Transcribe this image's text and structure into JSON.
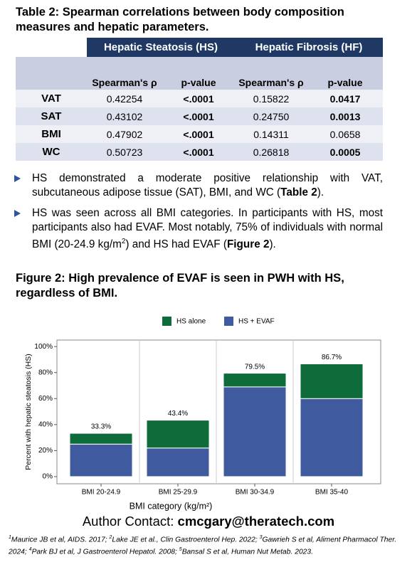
{
  "table_title": "Table 2: Spearman correlations between body composition measures and hepatic parameters.",
  "table": {
    "groups": [
      "Hepatic Steatosis (HS)",
      "Hepatic Fibrosis (HF)"
    ],
    "subheader": [
      "Spearman's ρ",
      "p-value",
      "Spearman's ρ",
      "p-value"
    ],
    "rows": [
      [
        "VAT",
        "0.42254",
        "<.0001",
        "0.15822",
        "0.0417"
      ],
      [
        "SAT",
        "0.43102",
        "<.0001",
        "0.24750",
        "0.0013"
      ],
      [
        "BMI",
        "0.47902",
        "<.0001",
        "0.14311",
        "0.0658"
      ],
      [
        "WC",
        "0.50723",
        "<.0001",
        "0.26818",
        "0.0005"
      ]
    ]
  },
  "bullets": [
    [
      "HS demonstrated a moderate positive relationship with VAT, subcutaneous adipose tissue (SAT), BMI, and WC (",
      "Table 2",
      ")."
    ],
    [
      "HS was seen across all BMI categories. In participants with HS, most participants also had EVAF. Most notably, 75% of individuals with  normal BMI (20-24.9 kg/m",
      "2",
      ") and HS had EVAF (",
      "Figure 2",
      ")."
    ]
  ],
  "figure_title": "Figure 2: High prevalence of EVAF is seen in PWH with HS, regardless of BMI.",
  "chart_data": {
    "type": "stacked-bar",
    "x_label": "BMI category (kg/m²)",
    "y_label": "Percent with hepatic steatosis (HS)",
    "categories": [
      "BMI 20-24.9",
      "BMI 25-29.9",
      "BMI 30-34.9",
      "BMI 35-40"
    ],
    "series": [
      {
        "name": "HS alone",
        "color": "#0e6b3a",
        "values": [
          8.3,
          21.4,
          10.5,
          26.7
        ]
      },
      {
        "name": "HS + EVAF",
        "color": "#3f5a9e",
        "values": [
          25,
          22,
          69,
          60
        ]
      }
    ],
    "totals": [
      33.3,
      43.4,
      79.5,
      86.7
    ],
    "total_labels": [
      "33.3%",
      "43.4%",
      "79.5%",
      "86.7%"
    ],
    "ylim": [
      -5.5,
      105
    ],
    "yticks": [
      {
        "value": 0,
        "label": "0%"
      },
      {
        "value": 20,
        "label": "20%"
      },
      {
        "value": 40,
        "label": "40%"
      },
      {
        "value": 60,
        "label": "60%"
      },
      {
        "value": 80,
        "label": "80%"
      },
      {
        "value": 100,
        "label": "100%"
      }
    ],
    "grid": true,
    "legend": "top"
  },
  "contact": [
    "Author Contact: ",
    "cmcgary@theratech.com"
  ],
  "references": [
    {
      "num": "1",
      "text": "Maurice JB et al, AIDS. 2017;"
    },
    {
      "num": "2",
      "text": "Lake JE et al., Clin Gastroenterol Hep. 2022;"
    },
    {
      "num": "3",
      "text": "Gawrieh S et al, Aliment Pharmacol Ther. 2024;"
    },
    {
      "num": "4",
      "text": "Park BJ et al, J Gastroenterol Hepatol. 2008;"
    },
    {
      "num": "5",
      "text": "Bansal S et al, Human Nut Metab. 2023."
    }
  ]
}
